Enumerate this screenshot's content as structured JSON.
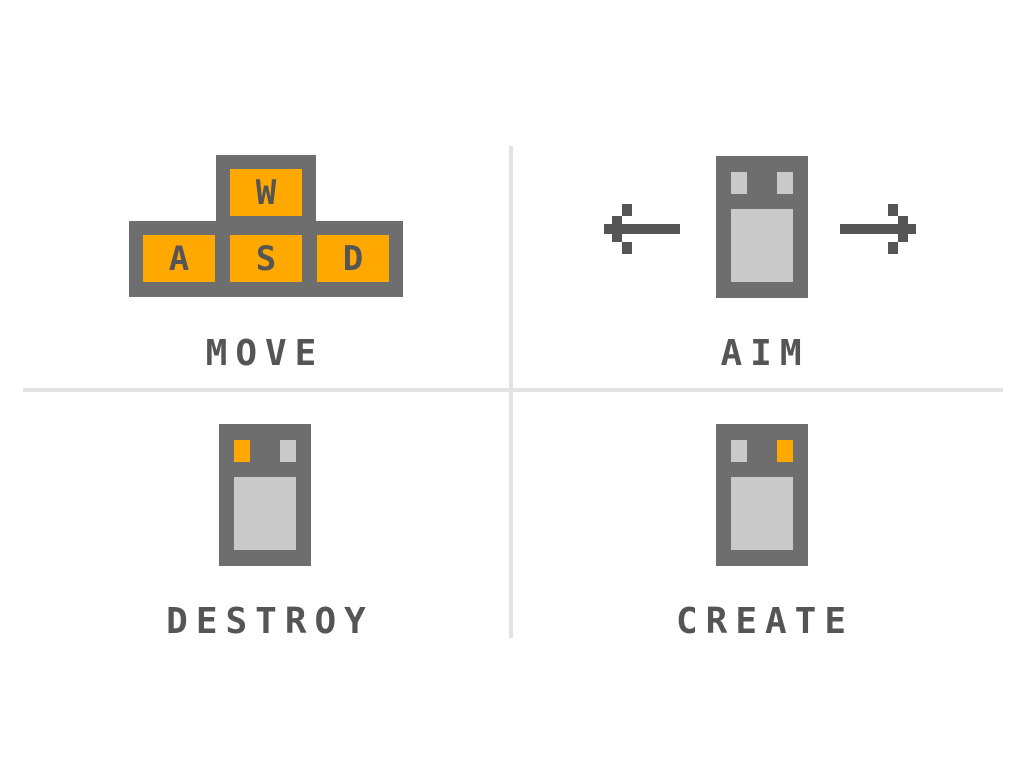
{
  "colors": {
    "key_frame": "#6e6e6e",
    "key_face": "#ffa800",
    "key_text": "#555555",
    "mouse_frame": "#6e6e6e",
    "mouse_button_idle": "#c9c9c9",
    "mouse_button_active": "#ffa800",
    "mouse_body": "#c9c9c9",
    "arrow": "#555555",
    "label": "#555555",
    "divider": "#e3e3e3",
    "background": "#ffffff"
  },
  "move": {
    "keys": {
      "w": "W",
      "a": "A",
      "s": "S",
      "d": "D"
    },
    "label": "MOVE"
  },
  "aim": {
    "label": "AIM",
    "icons": [
      "arrow-left-icon",
      "mouse-icon",
      "arrow-right-icon"
    ]
  },
  "destroy": {
    "label": "DESTROY",
    "active_button": "left"
  },
  "create": {
    "label": "CREATE",
    "active_button": "right"
  }
}
